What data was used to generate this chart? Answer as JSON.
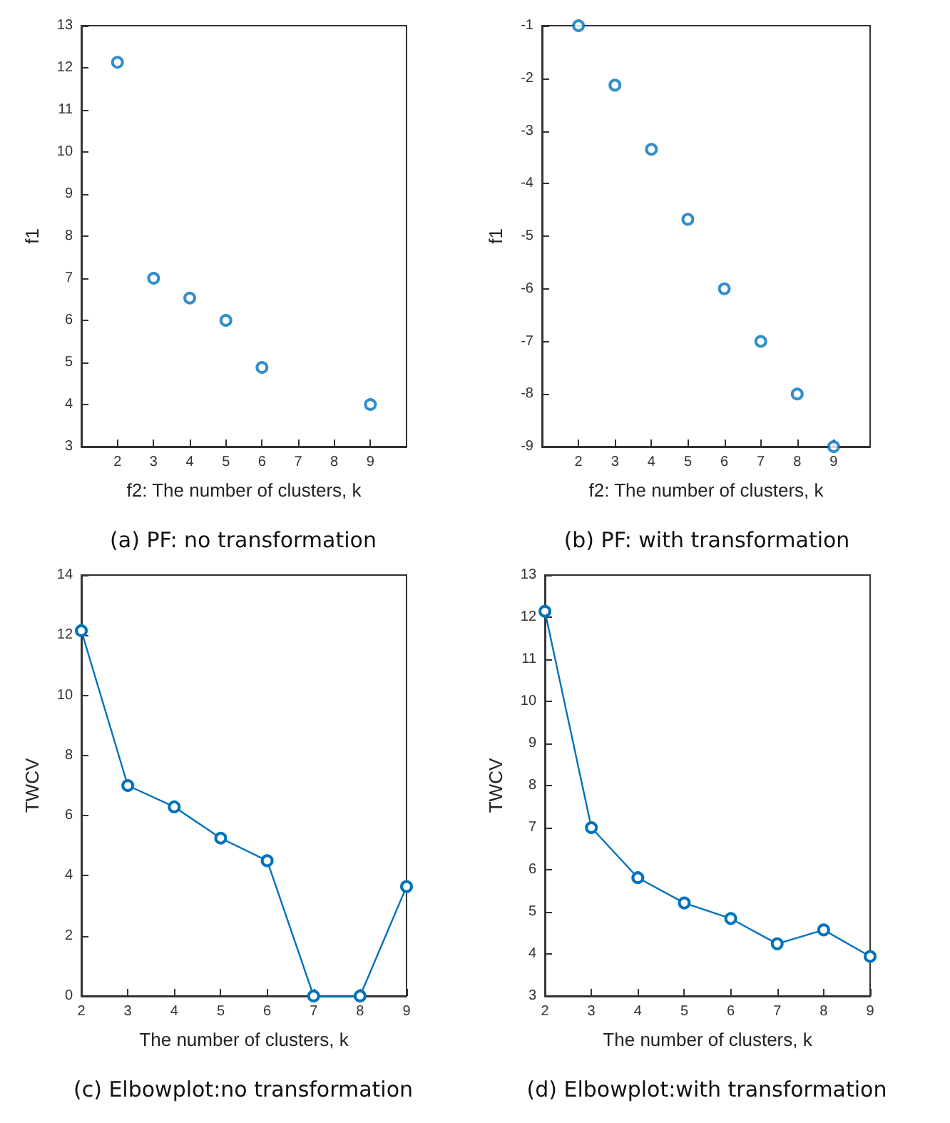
{
  "chart_data": [
    {
      "type": "scatter",
      "title": "(a) PF: no transformation",
      "xlabel": "f2: The number of clusters, k",
      "ylabel": "f1",
      "x": [
        2,
        3,
        4,
        5,
        6,
        9
      ],
      "series": [
        {
          "color": "#0072bd",
          "values": [
            12.13,
            7,
            6.53,
            6,
            4.88,
            4
          ]
        }
      ],
      "xlim": [
        1,
        10
      ],
      "xticks": [
        2,
        3,
        4,
        5,
        6,
        7,
        8,
        9
      ],
      "ylim": [
        3,
        13
      ],
      "yticks": [
        3,
        4,
        5,
        6,
        7,
        8,
        9,
        10,
        11,
        12,
        13
      ],
      "marker": "circle",
      "grid": false
    },
    {
      "type": "scatter",
      "title": "(b) PF: with transformation",
      "xlabel": "f2: The number of clusters, k",
      "ylabel": "f1",
      "x": [
        2,
        3,
        4,
        5,
        6,
        7,
        8,
        9
      ],
      "series": [
        {
          "color": "#0072bd",
          "values": [
            -1,
            -2.13,
            -3.35,
            -4.68,
            -6,
            -7,
            -8,
            -9
          ]
        }
      ],
      "xlim": [
        1,
        10
      ],
      "xticks": [
        2,
        3,
        4,
        5,
        6,
        7,
        8,
        9
      ],
      "ylim": [
        -9,
        -1
      ],
      "yticks": [
        -9,
        -8,
        -7,
        -6,
        -5,
        -4,
        -3,
        -2,
        -1
      ],
      "marker": "circle",
      "grid": false
    },
    {
      "type": "line",
      "title": "(c) Elbowplot:no transformation",
      "xlabel": "The number of clusters, k",
      "ylabel": "TWCV",
      "x": [
        2,
        3,
        4,
        5,
        6,
        7,
        8,
        9
      ],
      "series": [
        {
          "color": "#0072bd",
          "values": [
            12.15,
            7,
            6.29,
            5.25,
            4.5,
            0,
            0,
            3.64
          ]
        }
      ],
      "xlim": [
        2,
        9
      ],
      "xticks": [
        2,
        3,
        4,
        5,
        6,
        7,
        8,
        9
      ],
      "ylim": [
        0,
        14
      ],
      "yticks": [
        0,
        2,
        4,
        6,
        8,
        10,
        12,
        14
      ],
      "marker": "circle",
      "line_style": "solid",
      "grid": false
    },
    {
      "type": "line",
      "title": "(d) Elbowplot:with transformation",
      "xlabel": "The number of clusters, k",
      "ylabel": "TWCV",
      "x": [
        2,
        3,
        4,
        5,
        6,
        7,
        8,
        9
      ],
      "series": [
        {
          "color": "#0072bd",
          "values": [
            12.14,
            7,
            5.81,
            5.21,
            4.84,
            4.24,
            4.57,
            3.94
          ]
        }
      ],
      "xlim": [
        2,
        9
      ],
      "xticks": [
        2,
        3,
        4,
        5,
        6,
        7,
        8,
        9
      ],
      "ylim": [
        3,
        13
      ],
      "yticks": [
        3,
        4,
        5,
        6,
        7,
        8,
        9,
        10,
        11,
        12,
        13
      ],
      "marker": "circle",
      "line_style": "solid",
      "grid": false
    }
  ]
}
